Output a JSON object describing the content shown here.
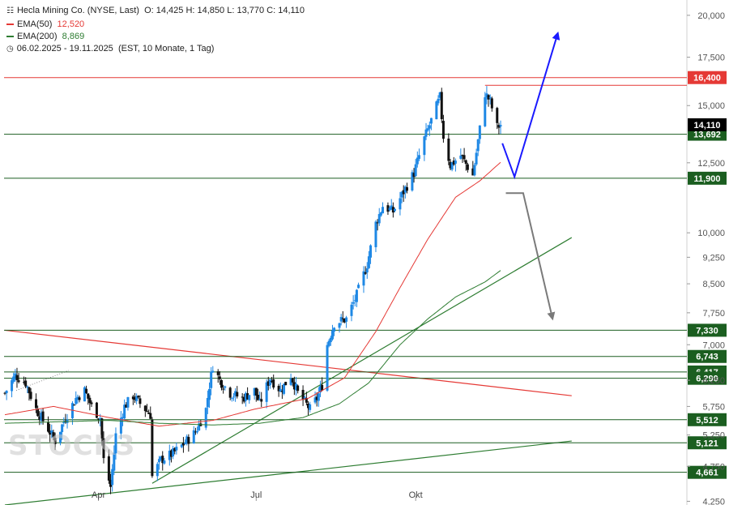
{
  "header": {
    "title": "Hecla Mining Co. (NYSE, Last)",
    "ohlc": "O: 14,425  H: 14,850  L: 13,770  C: 14,110",
    "ema50_label": "EMA(50)",
    "ema50_value": "12,520",
    "ema200_label": "EMA(200)",
    "ema200_value": "8,869",
    "range": "06.02.2025 - 19.11.2025",
    "range_detail": "(EST, 10 Monate, 1 Tag)",
    "icon": "candlestick-icon",
    "clock_icon": "clock-icon"
  },
  "watermark": "STOCK3",
  "colors": {
    "up": "#1e88e5",
    "down": "#111111",
    "ema50": "#e53935",
    "ema200": "#2e7d32",
    "level": "#1b5e20",
    "resistance": "#e53935",
    "bull_arrow": "#1a1aff",
    "bear_arrow": "#7a7a7a",
    "price_tag": "#000000",
    "level_tag": "#1b5e20",
    "red_tag": "#e53935"
  },
  "chart_data": {
    "type": "candlestick",
    "y_scale": "log",
    "ylim": [
      4.2,
      21.0
    ],
    "y_ticks": [
      "20,000",
      "17,500",
      "15,000",
      "12,500",
      "10,000",
      "9,250",
      "8,500",
      "7,750",
      "7,000",
      "6,250",
      "5,750",
      "5,250",
      "4,750",
      "4,250"
    ],
    "y_tick_values": [
      20,
      17.5,
      15,
      12.5,
      10,
      9.25,
      8.5,
      7.75,
      7,
      6.25,
      5.75,
      5.25,
      4.75,
      4.25
    ],
    "x_labels": [
      "Apr",
      "Jul",
      "Okt"
    ],
    "x_label_dates": [
      "2025-04-01",
      "2025-07-01",
      "2025-10-01"
    ],
    "date_range": [
      "2025-02-06",
      "2025-11-19"
    ],
    "last_price": 14.11,
    "price_path": [
      [
        "2025-02-06",
        6.0
      ],
      [
        "2025-02-12",
        6.35
      ],
      [
        "2025-02-18",
        6.2
      ],
      [
        "2025-02-24",
        5.7
      ],
      [
        "2025-03-03",
        5.35
      ],
      [
        "2025-03-07",
        5.15
      ],
      [
        "2025-03-13",
        5.55
      ],
      [
        "2025-03-19",
        5.9
      ],
      [
        "2025-03-24",
        6.05
      ],
      [
        "2025-03-28",
        5.75
      ],
      [
        "2025-04-02",
        5.55
      ],
      [
        "2025-04-04",
        4.85
      ],
      [
        "2025-04-08",
        4.45
      ],
      [
        "2025-04-11",
        5.25
      ],
      [
        "2025-04-16",
        5.75
      ],
      [
        "2025-04-21",
        5.95
      ],
      [
        "2025-04-25",
        5.8
      ],
      [
        "2025-05-01",
        5.6
      ],
      [
        "2025-05-02",
        4.6
      ],
      [
        "2025-05-07",
        4.85
      ],
      [
        "2025-05-14",
        4.95
      ],
      [
        "2025-05-20",
        5.1
      ],
      [
        "2025-05-27",
        5.3
      ],
      [
        "2025-06-02",
        5.7
      ],
      [
        "2025-06-04",
        6.15
      ],
      [
        "2025-06-06",
        6.55
      ],
      [
        "2025-06-10",
        6.25
      ],
      [
        "2025-06-16",
        6.0
      ],
      [
        "2025-06-23",
        5.9
      ],
      [
        "2025-06-30",
        6.05
      ],
      [
        "2025-07-03",
        5.8
      ],
      [
        "2025-07-09",
        6.3
      ],
      [
        "2025-07-15",
        6.05
      ],
      [
        "2025-07-21",
        6.35
      ],
      [
        "2025-07-25",
        6.0
      ],
      [
        "2025-08-01",
        5.7
      ],
      [
        "2025-08-05",
        5.9
      ],
      [
        "2025-08-08",
        6.15
      ],
      [
        "2025-08-11",
        7.0
      ],
      [
        "2025-08-15",
        7.5
      ],
      [
        "2025-08-22",
        7.6
      ],
      [
        "2025-08-28",
        8.2
      ],
      [
        "2025-09-03",
        9.05
      ],
      [
        "2025-09-08",
        10.3
      ],
      [
        "2025-09-12",
        10.9
      ],
      [
        "2025-09-18",
        10.7
      ],
      [
        "2025-09-24",
        11.4
      ],
      [
        "2025-09-30",
        12.1
      ],
      [
        "2025-10-06",
        13.5
      ],
      [
        "2025-10-10",
        14.3
      ],
      [
        "2025-10-15",
        15.4
      ],
      [
        "2025-10-17",
        13.6
      ],
      [
        "2025-10-21",
        12.4
      ],
      [
        "2025-10-27",
        12.8
      ],
      [
        "2025-11-03",
        12.0
      ],
      [
        "2025-11-06",
        13.4
      ],
      [
        "2025-11-10",
        15.6
      ],
      [
        "2025-11-13",
        15.2
      ],
      [
        "2025-11-17",
        14.0
      ],
      [
        "2025-11-19",
        14.11
      ]
    ],
    "series": [
      {
        "name": "EMA(50)",
        "values": [
          [
            "2025-02-06",
            5.6
          ],
          [
            "2025-03-06",
            5.75
          ],
          [
            "2025-04-07",
            5.55
          ],
          [
            "2025-05-06",
            5.4
          ],
          [
            "2025-06-06",
            5.5
          ],
          [
            "2025-06-30",
            5.7
          ],
          [
            "2025-07-31",
            5.9
          ],
          [
            "2025-08-21",
            6.3
          ],
          [
            "2025-09-08",
            7.3
          ],
          [
            "2025-09-22",
            8.4
          ],
          [
            "2025-10-08",
            9.8
          ],
          [
            "2025-10-24",
            11.2
          ],
          [
            "2025-11-07",
            11.8
          ],
          [
            "2025-11-19",
            12.52
          ]
        ]
      },
      {
        "name": "EMA(200)",
        "values": [
          [
            "2025-02-06",
            5.45
          ],
          [
            "2025-04-07",
            5.5
          ],
          [
            "2025-05-06",
            5.45
          ],
          [
            "2025-06-06",
            5.42
          ],
          [
            "2025-07-03",
            5.45
          ],
          [
            "2025-07-28",
            5.55
          ],
          [
            "2025-08-18",
            5.8
          ],
          [
            "2025-09-04",
            6.2
          ],
          [
            "2025-09-22",
            7.0
          ],
          [
            "2025-10-08",
            7.6
          ],
          [
            "2025-10-24",
            8.15
          ],
          [
            "2025-11-10",
            8.55
          ],
          [
            "2025-11-19",
            8.869
          ]
        ]
      }
    ],
    "levels": [
      {
        "value": 16.4,
        "label": "16,400",
        "style": "resistance"
      },
      {
        "value": 13.692,
        "label": "13,692",
        "style": "support"
      },
      {
        "value": 11.9,
        "label": "11,900",
        "style": "support"
      },
      {
        "value": 7.33,
        "label": "7,330",
        "style": "support"
      },
      {
        "value": 6.743,
        "label": "6,743",
        "style": "support"
      },
      {
        "value": 6.417,
        "label": "6,417",
        "style": "support"
      },
      {
        "value": 6.29,
        "label": "6,290",
        "style": "support"
      },
      {
        "value": 5.512,
        "label": "5,512",
        "style": "support"
      },
      {
        "value": 5.121,
        "label": "5,121",
        "style": "support"
      },
      {
        "value": 4.661,
        "label": "4,661",
        "style": "support"
      }
    ],
    "trendlines": [
      {
        "from": [
          "2025-02-06",
          7.33
        ],
        "to": [
          "2025-12-30",
          5.95
        ],
        "style": "resistance"
      },
      {
        "from": [
          "2025-05-02",
          4.5
        ],
        "to": [
          "2025-12-30",
          9.85
        ],
        "style": "support"
      },
      {
        "from": [
          "2025-02-06",
          4.2
        ],
        "to": [
          "2025-12-30",
          5.15
        ],
        "style": "support"
      }
    ],
    "scenarios": [
      {
        "name": "bullish",
        "points": [
          [
            "2025-11-20",
            13.3
          ],
          [
            "2025-11-27",
            11.95
          ],
          [
            "2025-12-22",
            18.9
          ]
        ]
      },
      {
        "name": "bearish",
        "points": [
          [
            "2025-11-22",
            11.35
          ],
          [
            "2025-12-02",
            11.35
          ],
          [
            "2025-12-19",
            7.6
          ]
        ]
      }
    ]
  }
}
